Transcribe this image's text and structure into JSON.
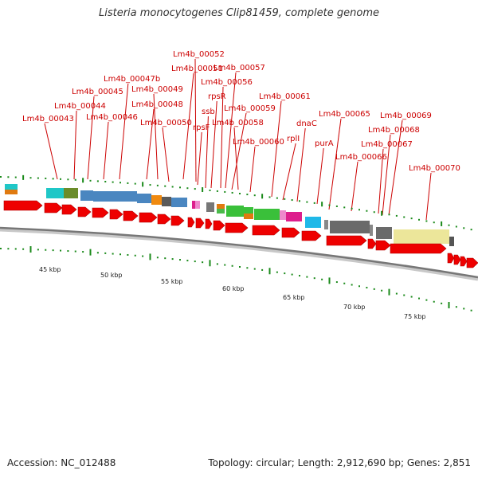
{
  "title": "Listeria monocytogenes Clip81459, complete genome",
  "footer": {
    "accession": "Accession: NC_012488",
    "stats": "Topology: circular; Length: 2,912,690 bp; Genes: 2,851"
  },
  "colors": {
    "label": "#cc0000",
    "leader_line": "#cc0000",
    "cds": "#ee0000",
    "backbone": "#888888",
    "tick": "#1a8a1a"
  },
  "kbp_labels": [
    "45 kbp",
    "50 kbp",
    "55 kbp",
    "60 kbp",
    "65 kbp",
    "70 kbp",
    "75 kbp"
  ],
  "gene_labels": [
    "Lm4b_00043",
    "Lm4b_00044",
    "Lm4b_00045",
    "Lm4b_00046",
    "Lm4b_00047b",
    "Lm4b_00048",
    "Lm4b_00049",
    "Lm4b_00050",
    "Lm4b_00051",
    "Lm4b_00052",
    "rpsF",
    "ssb",
    "rpsR",
    "Lm4b_00056",
    "Lm4b_00057",
    "Lm4b_00058",
    "Lm4b_00059",
    "Lm4b_00060",
    "Lm4b_00061",
    "rplI",
    "dnaC",
    "purA",
    "Lm4b_00065",
    "Lm4b_00066",
    "Lm4b_00067",
    "Lm4b_00068",
    "Lm4b_00069",
    "Lm4b_00070"
  ]
}
